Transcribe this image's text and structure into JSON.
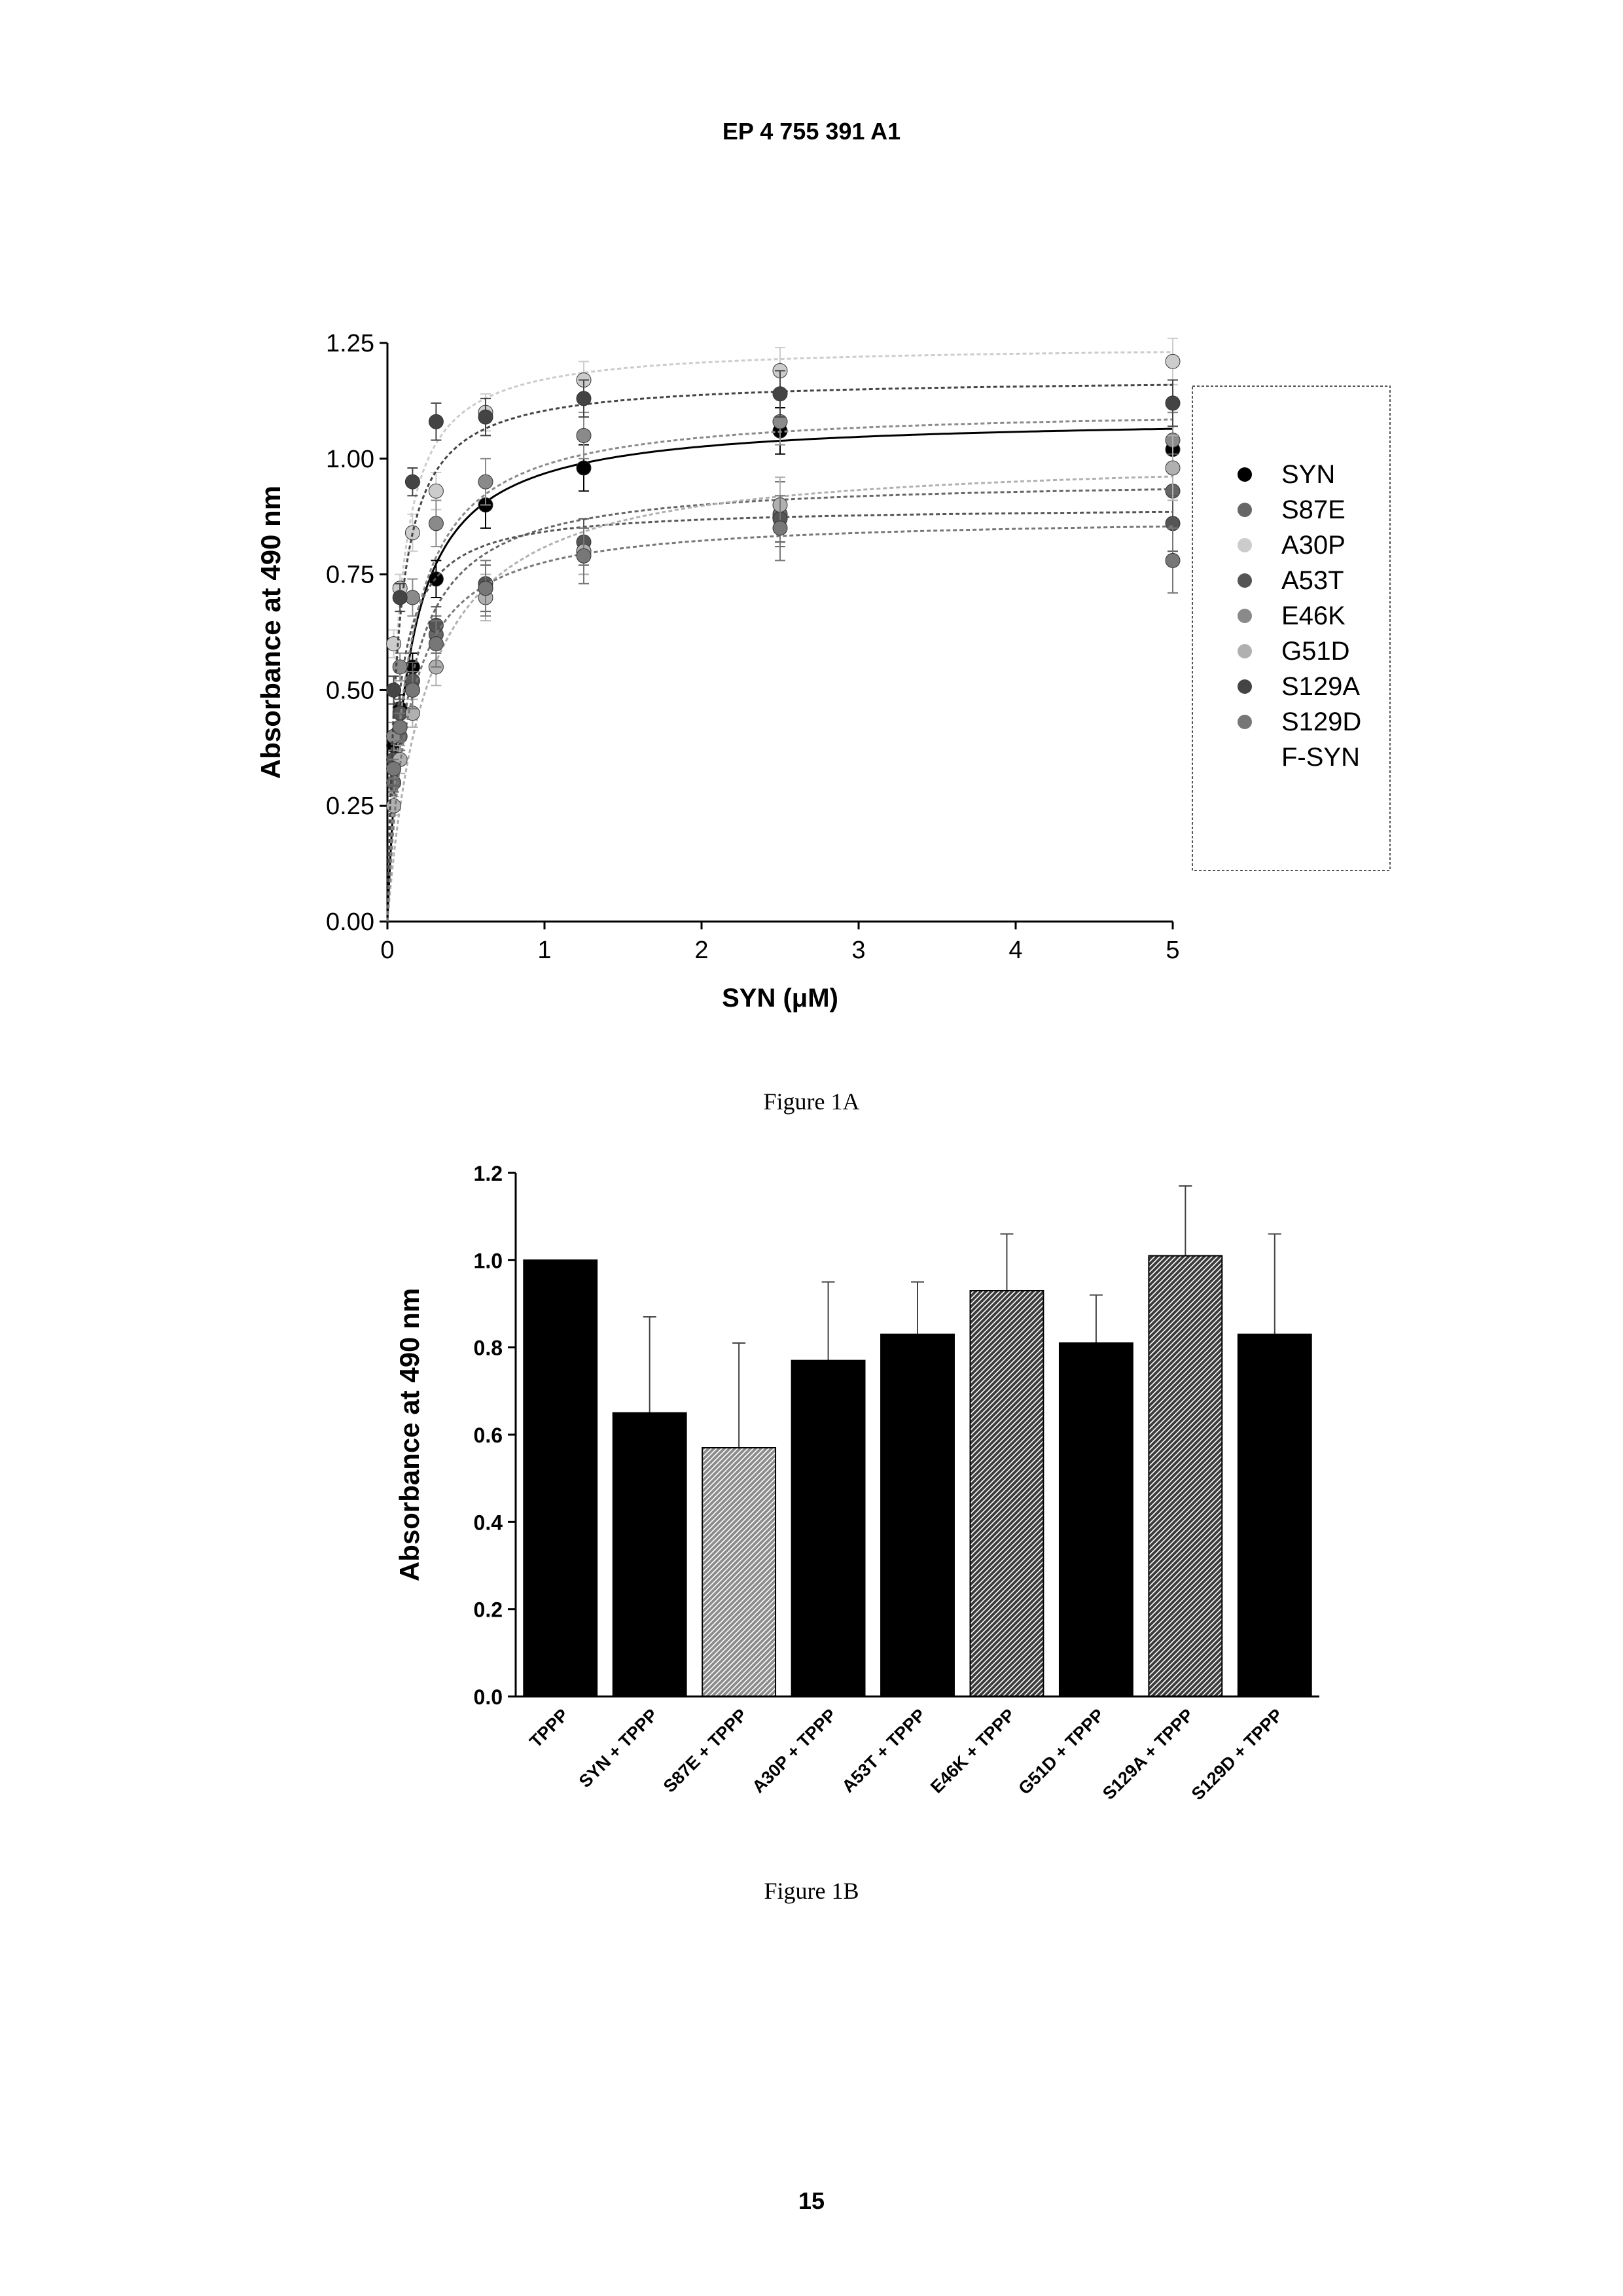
{
  "header": {
    "patent_number": "EP 4 755 391 A1"
  },
  "captions": {
    "fig1a": "Figure 1A",
    "fig1b": "Figure 1B"
  },
  "page_number": "15",
  "chart_data": [
    {
      "type": "scatter",
      "title": "",
      "xlabel": "SYN (μM)",
      "ylabel": "Absorbance at 490 nm",
      "xlim": [
        0,
        5
      ],
      "ylim": [
        0,
        1.25
      ],
      "x_ticks": [
        "0",
        "1",
        "2",
        "3",
        "4",
        "5"
      ],
      "y_ticks": [
        "0.00",
        "0.25",
        "0.50",
        "0.75",
        "1.00",
        "1.25"
      ],
      "legend_position": "right",
      "fitted_curves": true,
      "x": [
        0,
        0.04,
        0.08,
        0.16,
        0.31,
        0.625,
        1.25,
        2.5,
        5
      ],
      "series": [
        {
          "name": "SYN",
          "color": "#000000",
          "values": [
            0,
            0.38,
            0.46,
            0.55,
            0.74,
            0.9,
            0.98,
            1.06,
            1.02
          ],
          "err": [
            0,
            0.02,
            0.03,
            0.03,
            0.04,
            0.05,
            0.05,
            0.05,
            0.08
          ]
        },
        {
          "name": "S87E",
          "color": "#666666",
          "values": [
            0,
            0.3,
            0.4,
            0.5,
            0.62,
            0.72,
            0.8,
            0.88,
            0.93
          ],
          "err": [
            0,
            0.02,
            0.03,
            0.04,
            0.04,
            0.05,
            0.05,
            0.07,
            0.08
          ]
        },
        {
          "name": "A30P",
          "color": "#cccccc",
          "values": [
            0,
            0.6,
            0.72,
            0.84,
            0.93,
            1.1,
            1.17,
            1.19,
            1.21
          ],
          "err": [
            0,
            0.03,
            0.03,
            0.04,
            0.04,
            0.04,
            0.04,
            0.05,
            0.05
          ]
        },
        {
          "name": "A53T",
          "color": "#555555",
          "values": [
            0,
            0.35,
            0.45,
            0.52,
            0.64,
            0.73,
            0.82,
            0.87,
            0.86
          ],
          "err": [
            0,
            0.02,
            0.03,
            0.04,
            0.04,
            0.04,
            0.05,
            0.05,
            0.06
          ]
        },
        {
          "name": "E46K",
          "color": "#8a8a8a",
          "values": [
            0,
            0.4,
            0.55,
            0.7,
            0.86,
            0.95,
            1.05,
            1.08,
            1.04
          ],
          "err": [
            0,
            0.03,
            0.03,
            0.04,
            0.05,
            0.05,
            0.05,
            0.05,
            0.06
          ]
        },
        {
          "name": "G51D",
          "color": "#b0b0b0",
          "values": [
            0,
            0.25,
            0.35,
            0.45,
            0.55,
            0.7,
            0.8,
            0.9,
            0.98
          ],
          "err": [
            0,
            0.02,
            0.03,
            0.03,
            0.04,
            0.05,
            0.05,
            0.06,
            0.07
          ]
        },
        {
          "name": "S129A",
          "color": "#444444",
          "values": [
            0,
            0.5,
            0.7,
            0.95,
            1.08,
            1.09,
            1.13,
            1.14,
            1.12
          ],
          "err": [
            0,
            0.03,
            0.03,
            0.03,
            0.04,
            0.04,
            0.04,
            0.05,
            0.05
          ]
        },
        {
          "name": "S129D",
          "color": "#777777",
          "values": [
            0,
            0.33,
            0.42,
            0.5,
            0.6,
            0.72,
            0.79,
            0.85,
            0.78
          ],
          "err": [
            0,
            0.02,
            0.03,
            0.04,
            0.05,
            0.06,
            0.06,
            0.07,
            0.07
          ]
        },
        {
          "name": "F-SYN",
          "color": "#999999",
          "values": [],
          "err": []
        }
      ]
    },
    {
      "type": "bar",
      "title": "",
      "xlabel": "",
      "ylabel": "Absorbance at 490 nm",
      "ylim": [
        0,
        1.2
      ],
      "y_ticks": [
        "0.0",
        "0.2",
        "0.4",
        "0.6",
        "0.8",
        "1.0",
        "1.2"
      ],
      "categories": [
        "TPPP",
        "SYN + TPPP",
        "S87E + TPPP",
        "A30P + TPPP",
        "A53T + TPPP",
        "E46K + TPPP",
        "G51D + TPPP",
        "S129A + TPPP",
        "S129D + TPPP"
      ],
      "values": [
        1.0,
        0.65,
        0.57,
        0.77,
        0.83,
        0.93,
        0.81,
        1.01,
        0.83
      ],
      "errors": [
        0,
        0.22,
        0.24,
        0.18,
        0.12,
        0.13,
        0.11,
        0.16,
        0.23
      ],
      "bar_fills": [
        "#000000",
        "#000000",
        "#9a9a9a",
        "#000000",
        "#000000",
        "#5a5a5a",
        "#000000",
        "#5a5a5a",
        "#000000"
      ]
    }
  ]
}
